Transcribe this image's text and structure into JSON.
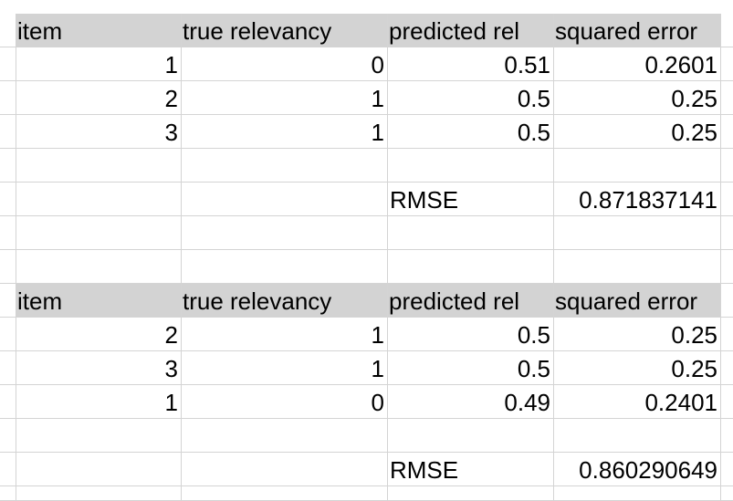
{
  "table1": {
    "headers": [
      "item",
      "true relevancy",
      "predicted rel",
      "squared error"
    ],
    "rows": [
      {
        "item": "1",
        "true": "0",
        "pred": "0.51",
        "sq": "0.2601"
      },
      {
        "item": "2",
        "true": "1",
        "pred": "0.5",
        "sq": "0.25"
      },
      {
        "item": "3",
        "true": "1",
        "pred": "0.5",
        "sq": "0.25"
      }
    ],
    "rmse_label": "RMSE",
    "rmse_value": "0.871837141"
  },
  "table2": {
    "headers": [
      "item",
      "true relevancy",
      "predicted rel",
      "squared error"
    ],
    "rows": [
      {
        "item": "2",
        "true": "1",
        "pred": "0.5",
        "sq": "0.25"
      },
      {
        "item": "3",
        "true": "1",
        "pred": "0.5",
        "sq": "0.25"
      },
      {
        "item": "1",
        "true": "0",
        "pred": "0.49",
        "sq": "0.2401"
      }
    ],
    "rmse_label": "RMSE",
    "rmse_value": "0.860290649"
  }
}
